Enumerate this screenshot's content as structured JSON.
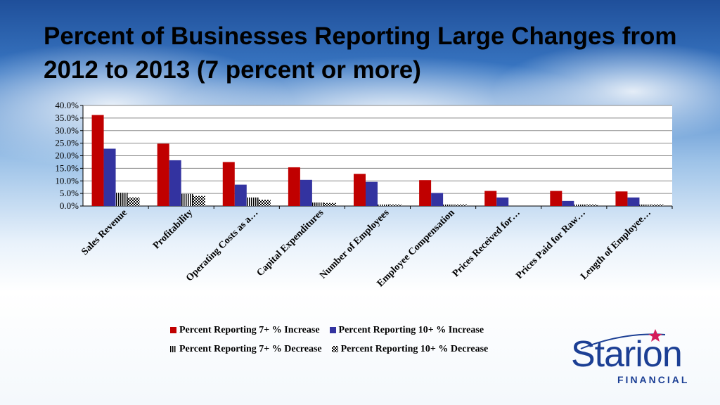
{
  "slide": {
    "title": "Percent of Businesses Reporting Large Changes from 2012 to 2013 (7 percent or more)"
  },
  "colors": {
    "increase7": "#c00000",
    "increase10": "#3333a0",
    "decrease7": "#000000",
    "decrease10": "#000000",
    "logo_blue": "#1c3f94",
    "logo_star": "#d41b5a"
  },
  "chart_data": {
    "type": "bar",
    "title": "",
    "xlabel": "",
    "ylabel": "",
    "ylim": [
      0,
      40
    ],
    "yticks": [
      "0.0%",
      "5.0%",
      "10.0%",
      "15.0%",
      "20.0%",
      "25.0%",
      "30.0%",
      "35.0%",
      "40.0%"
    ],
    "grid": true,
    "legend_position": "bottom",
    "categories": [
      "Sales Revenue",
      "Profitability",
      "Operating Costs as a…",
      "Capital Expenditures",
      "Number of Employees",
      "Employee Compensation",
      "Prices Received for…",
      "Prices Paid for Raw…",
      "Length of Employee…"
    ],
    "series": [
      {
        "name": "Percent Reporting 7+ % Increase",
        "pattern": "solid-red",
        "values": [
          36.2,
          24.8,
          17.5,
          15.4,
          12.8,
          10.3,
          6.0,
          6.0,
          5.8
        ]
      },
      {
        "name": "Percent Reporting 10+ % Increase",
        "pattern": "solid-blue",
        "values": [
          22.8,
          18.2,
          8.5,
          10.4,
          9.6,
          5.2,
          3.4,
          2.0,
          3.4
        ]
      },
      {
        "name": "Percent Reporting 7+ % Decrease",
        "pattern": "vertical-stripes",
        "values": [
          5.3,
          4.8,
          3.4,
          1.4,
          0.6,
          0.6,
          0.0,
          0.6,
          0.6
        ]
      },
      {
        "name": "Percent Reporting 10+ % Decrease",
        "pattern": "checker",
        "values": [
          3.4,
          4.0,
          2.5,
          1.2,
          0.6,
          0.6,
          0.0,
          0.6,
          0.6
        ]
      }
    ]
  },
  "logo": {
    "name": "Starion",
    "subtitle": "FINANCIAL"
  }
}
